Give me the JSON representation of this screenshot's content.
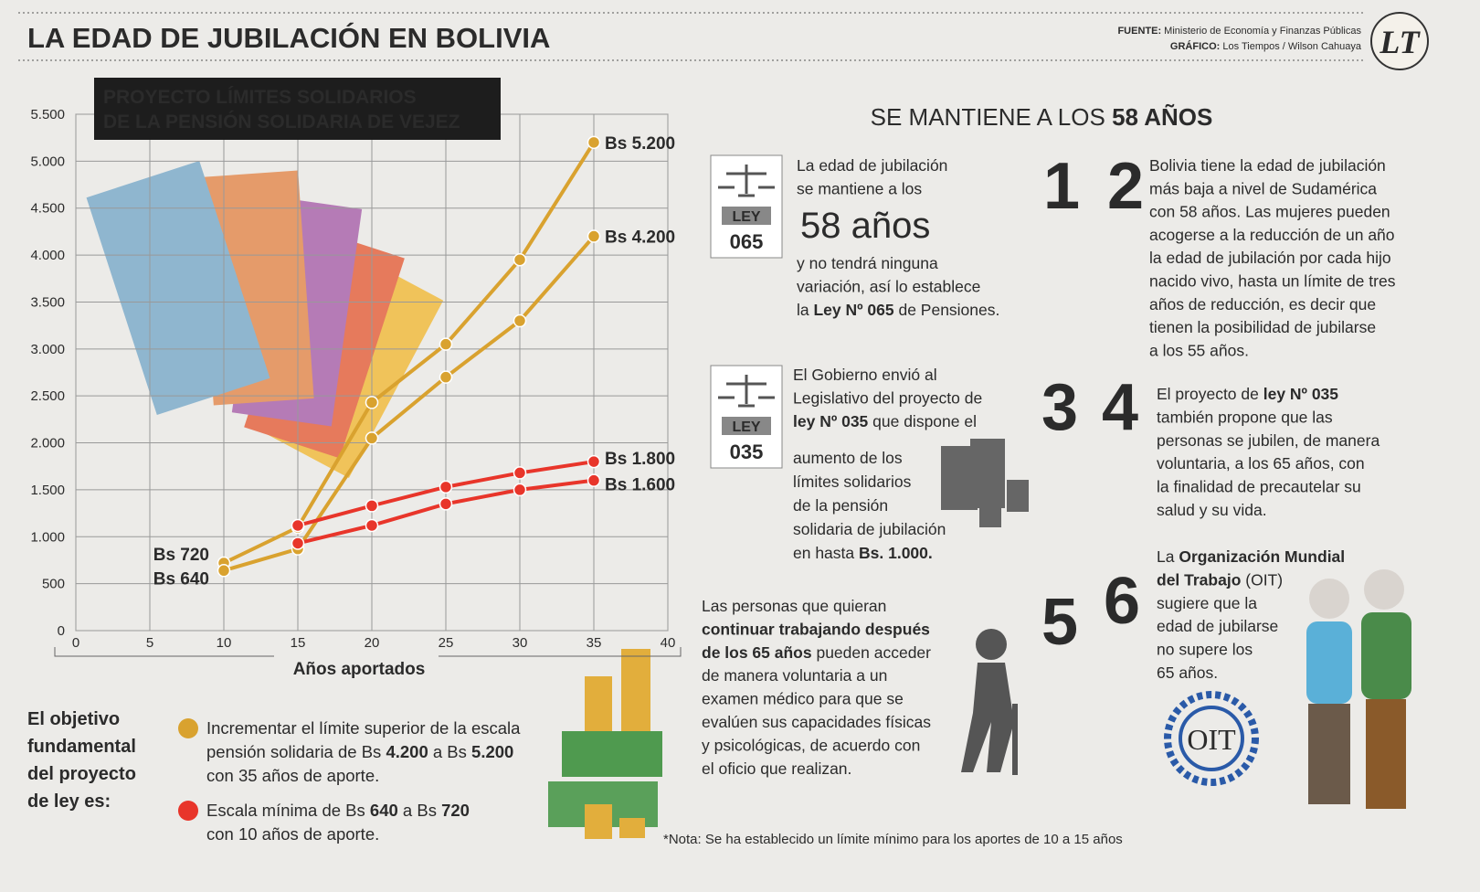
{
  "header": {
    "title": "LA EDAD DE JUBILACIÓN EN BOLIVIA",
    "source": [
      [
        {
          "text": "FUENTE:",
          "bold": true
        },
        " Ministerio de Economía y Finanzas Públicas"
      ],
      [
        {
          "text": "GRÁFICO:",
          "bold": true
        },
        " Los Tiempos / Wilson Cahuaya"
      ]
    ],
    "logo": "LT"
  },
  "chart_data": {
    "type": "line",
    "title": [
      [
        {
          "text": "PROYECTO LÍMITES SOLIDARIOS",
          "bold": true
        }
      ],
      [
        {
          "text": "DE LA PENSIÓN SOLIDARIA DE VEJEZ",
          "bold": true
        }
      ]
    ],
    "x_label": "Años aportados",
    "x": [
      10,
      15,
      20,
      25,
      30,
      35
    ],
    "series": [
      {
        "color": "#d9a22f",
        "values": [
          720,
          1100,
          2430,
          3050,
          3950,
          5200
        ],
        "value_labels": [
          "Bs 720",
          null,
          null,
          null,
          null,
          "Bs 5.200"
        ]
      },
      {
        "color": "#d9a22f",
        "values": [
          640,
          870,
          2050,
          2700,
          3300,
          4200
        ],
        "value_labels": [
          "Bs 640",
          null,
          null,
          null,
          null,
          "Bs 4.200"
        ]
      },
      {
        "color": "#e8352a",
        "values": [
          null,
          1120,
          1330,
          1530,
          1680,
          1800
        ],
        "value_labels": [
          null,
          null,
          null,
          null,
          null,
          "Bs 1.800"
        ]
      },
      {
        "color": "#e8352a",
        "values": [
          null,
          930,
          1120,
          1350,
          1500,
          1600
        ],
        "value_labels": [
          null,
          null,
          null,
          null,
          null,
          "Bs 1.600"
        ]
      }
    ],
    "xlim": [
      0,
      40
    ],
    "xticks": [
      0,
      5,
      10,
      15,
      20,
      25,
      30,
      35,
      40
    ],
    "ylim": [
      0,
      5500
    ],
    "yticks": [
      0,
      500,
      {
        "value": 1000,
        "label": "1.000"
      },
      {
        "value": 1500,
        "label": "1.500"
      },
      {
        "value": 2000,
        "label": "2.000"
      },
      {
        "value": 2500,
        "label": "2.500"
      },
      {
        "value": 3000,
        "label": "3.000"
      },
      {
        "value": 3500,
        "label": "3.500"
      },
      {
        "value": 4000,
        "label": "4.000"
      },
      {
        "value": 4500,
        "label": "4.500"
      },
      {
        "value": 5000,
        "label": "5.000"
      },
      {
        "value": 5500,
        "label": "5.500"
      }
    ],
    "grid": true,
    "legend_intro": [
      [
        {
          "text": "El objetivo",
          "bold": true
        }
      ],
      [
        {
          "text": "fundamental",
          "bold": true
        }
      ],
      [
        {
          "text": "del proyecto",
          "bold": true
        }
      ],
      [
        {
          "text": "de ley es:",
          "bold": true
        }
      ]
    ],
    "legend": [
      {
        "color": "#d9a22f",
        "lines": [
          [
            "Incrementar el límite superior de la escala"
          ],
          [
            "pensión solidaria de Bs ",
            {
              "text": "4.200",
              "bold": true
            },
            " a Bs ",
            {
              "text": "5.200",
              "bold": true
            }
          ],
          [
            "con 35 años de aporte."
          ]
        ]
      },
      {
        "color": "#e8352a",
        "lines": [
          [
            "Escala mínima de Bs ",
            {
              "text": "640",
              "bold": true
            },
            " a Bs ",
            {
              "text": "720",
              "bold": true
            }
          ],
          [
            "con 10 años de aporte."
          ]
        ]
      }
    ]
  },
  "heading": [
    [
      "SE MANTIENE A LOS ",
      {
        "text": "58 AÑOS",
        "bold": true
      }
    ]
  ],
  "laws": [
    [
      "LEY",
      "065"
    ],
    [
      "LEY",
      "035"
    ]
  ],
  "highlight": "58 años",
  "numbers": [
    "1",
    "2",
    "3",
    "4",
    "5",
    "6"
  ],
  "blocks": [
    [
      [
        "La edad de jubilación"
      ],
      [
        "se mantiene a los"
      ]
    ],
    [
      [
        "y no tendrá ninguna"
      ],
      [
        "variación, así lo establece"
      ],
      [
        "la ",
        {
          "text": "Ley Nº 065",
          "bold": true
        },
        " de Pensiones."
      ]
    ],
    [
      [
        "Bolivia tiene la edad de jubilación"
      ],
      [
        "más baja a nivel de Sudamérica"
      ],
      [
        "con 58 años. Las mujeres pueden"
      ],
      [
        "acogerse a la reducción de un año"
      ],
      [
        "la edad de jubilación por cada hijo"
      ],
      [
        "nacido vivo, hasta un límite de tres"
      ],
      [
        "años de reducción, es decir que"
      ],
      [
        "tienen la posibilidad de jubilarse"
      ],
      [
        "a los 55 años."
      ]
    ],
    [
      [
        "El Gobierno envió al"
      ],
      [
        "Legislativo del proyecto de"
      ],
      [
        {
          "text": "ley Nº 035",
          "bold": true
        },
        " que dispone el"
      ]
    ],
    [
      [
        "aumento de los"
      ],
      [
        "límites solidarios"
      ],
      [
        "de la pensión"
      ],
      [
        "solidaria de jubilación"
      ],
      [
        "en hasta ",
        {
          "text": "Bs. 1.000.",
          "bold": true
        }
      ]
    ],
    [
      [
        "El proyecto de ",
        {
          "text": "ley Nº 035",
          "bold": true
        }
      ],
      [
        "también propone que las"
      ],
      [
        "personas se jubilen, de manera"
      ],
      [
        "voluntaria, a los 65 años, con"
      ],
      [
        "la finalidad de precautelar su"
      ],
      [
        "salud y su vida."
      ]
    ],
    [
      [
        "Las personas que quieran"
      ],
      [
        {
          "text": "continuar trabajando después",
          "bold": true
        }
      ],
      [
        {
          "text": "de los 65 años",
          "bold": true
        },
        " pueden acceder"
      ],
      [
        "de manera voluntaria a un"
      ],
      [
        "examen médico para que se"
      ],
      [
        "evalúen sus capacidades físicas"
      ],
      [
        "y psicológicas, de acuerdo con"
      ],
      [
        "el oficio que realizan."
      ]
    ],
    [
      [
        "La ",
        {
          "text": "Organización Mundial",
          "bold": true
        }
      ],
      [
        {
          "text": "del Trabajo",
          "bold": true
        },
        " (OIT)"
      ],
      [
        "sugiere que la"
      ],
      [
        "edad de jubilarse"
      ],
      [
        "no supere los"
      ],
      [
        "65 años."
      ]
    ]
  ],
  "oit_logo": "OIT",
  "note": "*Nota: Se ha establecido un límite mínimo para los aportes de 10 a 15 años"
}
